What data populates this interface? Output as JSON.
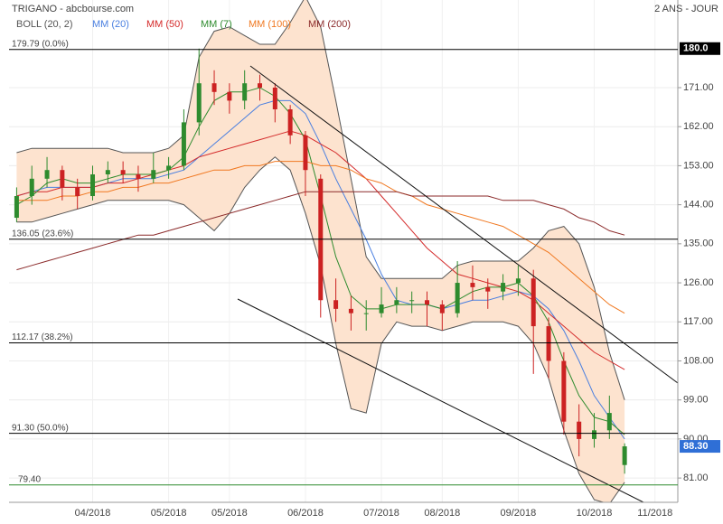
{
  "chart_data": {
    "type": "candlestick",
    "title": "TRIGANO - abcbourse.com",
    "subtitle": "2 ANS - JOUR",
    "categories": [
      null,
      null,
      null,
      null,
      null,
      "04/2018",
      null,
      null,
      null,
      null,
      "05/2018",
      null,
      null,
      null,
      "05/2018",
      null,
      null,
      null,
      null,
      "06/2018",
      null,
      null,
      null,
      null,
      "07/2018",
      null,
      null,
      null,
      "08/2018",
      null,
      null,
      null,
      null,
      "09/2018",
      null,
      null,
      null,
      null,
      "10/2018",
      null,
      null,
      null,
      "11/2018",
      null
    ],
    "ohlc": {
      "up_color": "#2e8b2e",
      "down_color": "#cc2222",
      "open": [
        141,
        146,
        150,
        152,
        148,
        146,
        151,
        152,
        151,
        150,
        152,
        153,
        163,
        172,
        170,
        168,
        172,
        171,
        166,
        160,
        150,
        122,
        120,
        119,
        119,
        121,
        122,
        122,
        121,
        119,
        126,
        125,
        124,
        126,
        127,
        116,
        108,
        94,
        90,
        92,
        84,
        null,
        null,
        null
      ],
      "high": [
        148,
        153,
        155,
        153,
        150,
        153,
        154,
        154,
        153,
        156,
        155,
        166,
        180,
        175,
        172,
        175,
        174,
        172,
        167,
        161,
        151,
        127,
        123,
        122,
        125,
        125,
        124,
        124,
        122,
        131,
        130,
        127,
        128,
        130,
        129,
        118,
        110,
        98,
        96,
        100,
        89,
        null,
        null,
        null
      ],
      "low": [
        140,
        144,
        148,
        145,
        143,
        145,
        149,
        149,
        147,
        149,
        150,
        152,
        160,
        167,
        165,
        166,
        168,
        163,
        158,
        146,
        118,
        117,
        115,
        115,
        118,
        119,
        119,
        116,
        115,
        118,
        122,
        120,
        122,
        123,
        105,
        104,
        91,
        86,
        88,
        90,
        82,
        null,
        null,
        null
      ],
      "close": [
        146,
        150,
        152,
        148,
        146,
        151,
        152,
        151,
        150,
        152,
        153,
        163,
        172,
        170,
        168,
        172,
        171,
        166,
        160,
        152,
        122,
        120,
        119,
        119,
        121,
        122,
        122,
        121,
        119,
        126,
        125,
        124,
        126,
        127,
        116,
        108,
        94,
        90,
        92,
        96,
        88.3,
        null,
        null,
        null
      ]
    },
    "bollinger": {
      "name": "BOLL (20, 2)",
      "color": "#555555",
      "fill": "#fde3cf",
      "upper": [
        156,
        157,
        157,
        157,
        157,
        157,
        157,
        156,
        156,
        156,
        157,
        160,
        178,
        184,
        185,
        183,
        181,
        181,
        186,
        192,
        185,
        168,
        150,
        132,
        127,
        127,
        127,
        127,
        127,
        130,
        131,
        131,
        131,
        131,
        134,
        138,
        139,
        135,
        125,
        110,
        99,
        null,
        null,
        null
      ],
      "lower": [
        140,
        140,
        141,
        142,
        143,
        144,
        145,
        145,
        145,
        145,
        145,
        144,
        141,
        138,
        142,
        148,
        152,
        155,
        152,
        142,
        130,
        112,
        97,
        96,
        112,
        117,
        116,
        116,
        115,
        116,
        117,
        117,
        117,
        116,
        112,
        104,
        92,
        82,
        76,
        75,
        80,
        null,
        null,
        null
      ]
    },
    "series": [
      {
        "name": "MM (20)",
        "color": "#4a7fe0",
        "values": [
          146,
          147,
          148,
          148,
          148,
          148,
          149,
          150,
          150,
          150,
          151,
          152,
          155,
          158,
          161,
          164,
          167,
          168,
          168,
          165,
          158,
          150,
          143,
          136,
          128,
          122,
          121,
          121,
          120,
          121,
          122,
          122,
          123,
          124,
          123,
          120,
          115,
          108,
          100,
          95,
          90,
          null,
          null,
          null
        ]
      },
      {
        "name": "MM (50)",
        "color": "#d42a2a",
        "values": [
          146,
          147,
          147,
          148,
          148,
          148,
          149,
          149,
          150,
          151,
          152,
          153,
          155,
          156,
          157,
          158,
          159,
          160,
          161,
          160,
          158,
          156,
          153,
          150,
          146,
          142,
          138,
          134,
          131,
          128,
          127,
          126,
          125,
          124,
          122,
          119,
          116,
          113,
          110,
          108,
          106,
          null,
          null,
          null
        ]
      },
      {
        "name": "MM (7)",
        "color": "#2e8b2e",
        "values": [
          144,
          146,
          149,
          150,
          149,
          149,
          150,
          151,
          151,
          151,
          152,
          155,
          162,
          168,
          170,
          170,
          171,
          169,
          165,
          159,
          146,
          132,
          123,
          120,
          120,
          121,
          121,
          121,
          120,
          122,
          124,
          125,
          125,
          126,
          123,
          117,
          108,
          100,
          95,
          94,
          91,
          null,
          null,
          null
        ]
      },
      {
        "name": "MM (100)",
        "color": "#f07820",
        "values": [
          145,
          145,
          145,
          146,
          146,
          147,
          147,
          148,
          148,
          149,
          149,
          150,
          151,
          152,
          152,
          153,
          153,
          154,
          154,
          154,
          153,
          153,
          152,
          150,
          149,
          147,
          146,
          144,
          143,
          142,
          141,
          140,
          139,
          137,
          135,
          133,
          130,
          127,
          124,
          121,
          119,
          null,
          null,
          null
        ]
      },
      {
        "name": "MM (200)",
        "color": "#8b2a2a",
        "values": [
          129,
          130,
          131,
          132,
          133,
          134,
          135,
          136,
          137,
          137,
          138,
          139,
          140,
          141,
          142,
          143,
          144,
          145,
          146,
          147,
          147,
          147,
          147,
          147,
          147,
          147,
          146,
          146,
          146,
          146,
          146,
          146,
          145,
          145,
          145,
          144,
          143,
          141,
          140,
          138,
          137,
          null,
          null,
          null
        ]
      }
    ],
    "fib_levels": [
      {
        "value": 179.79,
        "label": "179.79  (0.0%)",
        "color": "#000000"
      },
      {
        "value": 136.05,
        "label": "136.05  (23.6%)",
        "color": "#000000"
      },
      {
        "value": 112.17,
        "label": "112.17  (38.2%)",
        "color": "#000000"
      },
      {
        "value": 91.3,
        "label": "91.30  (50.0%)",
        "color": "#000000"
      },
      {
        "value": 79.4,
        "label": "79.40",
        "color": "#2e8b2e"
      }
    ],
    "ylim": [
      75.4,
      191.2
    ],
    "yticks": [
      {
        "value": 81,
        "label": "81.00"
      },
      {
        "value": 90,
        "label": "90.00"
      },
      {
        "value": 99,
        "label": "99.00"
      },
      {
        "value": 108,
        "label": "108.00"
      },
      {
        "value": 117,
        "label": "117.00"
      },
      {
        "value": 126,
        "label": "126.00"
      },
      {
        "value": 135,
        "label": "135.00"
      },
      {
        "value": 144,
        "label": "144.00"
      },
      {
        "value": 153,
        "label": "153.00"
      },
      {
        "value": 162,
        "label": "162.00"
      },
      {
        "value": 171,
        "label": "171.00"
      }
    ],
    "max_badge": {
      "value": 180,
      "label": "180.0",
      "color": "#000000"
    },
    "last_badge": {
      "value": 88.3,
      "label": "88.30",
      "color": "#2f6fd6"
    },
    "grid": true
  }
}
